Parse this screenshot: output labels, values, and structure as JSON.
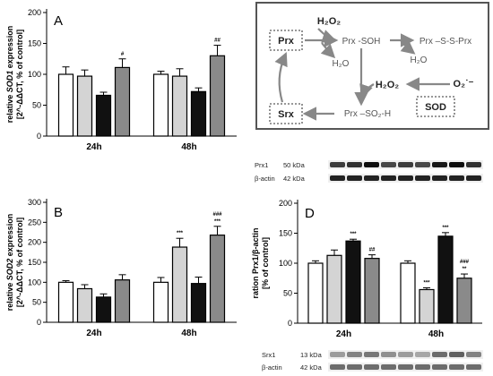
{
  "colors": {
    "white": "#ffffff",
    "lightgray": "#d4d4d4",
    "black": "#111111",
    "gray": "#8a8a8a",
    "diagram_frame": "#555555",
    "diagram_arrow": "#888888"
  },
  "chart_data": [
    {
      "panel": "A",
      "type": "bar",
      "ylabel_prefix": "relative ",
      "ylabel_gene": "SOD1",
      "ylabel_suffix": " expression",
      "ylabel_line2": "[2^-ΔΔCT, % of control]",
      "ylim": [
        0,
        200
      ],
      "yticks": [
        0,
        50,
        100,
        150,
        200
      ],
      "categories": [
        "24h",
        "48h"
      ],
      "bar_colors": [
        "white",
        "lightgray",
        "black",
        "gray"
      ],
      "values": [
        [
          100,
          97,
          66,
          111
        ],
        [
          100,
          97,
          72,
          130
        ]
      ],
      "errors": [
        [
          12,
          10,
          5,
          14
        ],
        [
          5,
          12,
          6,
          17
        ]
      ],
      "significance": [
        [
          "",
          "",
          "",
          "#"
        ],
        [
          "",
          "",
          "",
          "##"
        ]
      ]
    },
    {
      "panel": "B",
      "type": "bar",
      "ylabel_prefix": "relative ",
      "ylabel_gene": "SOD2",
      "ylabel_suffix": " expression",
      "ylabel_line2": "[2^-ΔΔCT, % of control]",
      "ylim": [
        0,
        300
      ],
      "yticks": [
        0,
        50,
        100,
        150,
        200,
        250,
        300
      ],
      "categories": [
        "24h",
        "48h"
      ],
      "bar_colors": [
        "white",
        "lightgray",
        "black",
        "gray"
      ],
      "values": [
        [
          100,
          84,
          63,
          106
        ],
        [
          100,
          188,
          97,
          218
        ]
      ],
      "errors": [
        [
          4,
          10,
          8,
          13
        ],
        [
          12,
          22,
          16,
          22
        ]
      ],
      "significance": [
        [
          "",
          "",
          "",
          ""
        ],
        [
          "",
          "***",
          "",
          "###\n***"
        ]
      ]
    },
    {
      "panel": "D",
      "type": "bar",
      "ylabel_prefix": "ration Prx1/β-actin",
      "ylabel_gene": "",
      "ylabel_suffix": "",
      "ylabel_line2": "[% of control]",
      "ylim": [
        0,
        200
      ],
      "yticks": [
        0,
        50,
        100,
        150,
        200
      ],
      "categories": [
        "24h",
        "48h"
      ],
      "bar_colors": [
        "white",
        "lightgray",
        "black",
        "gray"
      ],
      "values": [
        [
          100,
          113,
          137,
          108
        ],
        [
          100,
          56,
          145,
          75
        ]
      ],
      "errors": [
        [
          4,
          9,
          3,
          6
        ],
        [
          4,
          3,
          6,
          7
        ]
      ],
      "significance": [
        [
          "",
          "",
          "***",
          "##"
        ],
        [
          "",
          "***",
          "***",
          "###\n**"
        ]
      ]
    }
  ],
  "diagram": {
    "h2o2_top": "H₂O₂",
    "prx": "Prx",
    "prx_soh": "Prx -SOH",
    "prx_ssprx": "Prx –S-S-Prx",
    "h2o_1": "H₂O",
    "h2o_2": "H₂O",
    "h2o2_mid": "H₂O₂",
    "o2": "O₂˙⁻",
    "srx": "Srx",
    "prx_so2h": "Prx –SO₂-H",
    "sod": "SOD"
  },
  "blots": {
    "prx1": {
      "label": "Prx1",
      "size": "50 kDa"
    },
    "actin1": {
      "label": "β-actin",
      "size": "42 kDa"
    },
    "srx1": {
      "label": "Srx1",
      "size": "13 kDa"
    },
    "actin2": {
      "label": "β-actin",
      "size": "42 kDa"
    }
  }
}
